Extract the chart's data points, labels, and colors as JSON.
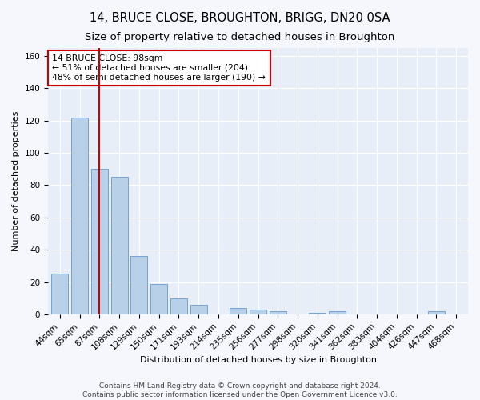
{
  "title": "14, BRUCE CLOSE, BROUGHTON, BRIGG, DN20 0SA",
  "subtitle": "Size of property relative to detached houses in Broughton",
  "xlabel": "Distribution of detached houses by size in Broughton",
  "ylabel": "Number of detached properties",
  "categories": [
    "44sqm",
    "65sqm",
    "87sqm",
    "108sqm",
    "129sqm",
    "150sqm",
    "171sqm",
    "193sqm",
    "214sqm",
    "235sqm",
    "256sqm",
    "277sqm",
    "298sqm",
    "320sqm",
    "341sqm",
    "362sqm",
    "383sqm",
    "404sqm",
    "426sqm",
    "447sqm",
    "468sqm"
  ],
  "values": [
    25,
    122,
    90,
    85,
    36,
    19,
    10,
    6,
    0,
    4,
    3,
    2,
    0,
    1,
    2,
    0,
    0,
    0,
    0,
    2,
    0
  ],
  "bar_color": "#b8d0e8",
  "bar_edge_color": "#6699cc",
  "vline_x": 2.0,
  "vline_color": "#cc0000",
  "annotation_text": "14 BRUCE CLOSE: 98sqm\n← 51% of detached houses are smaller (204)\n48% of semi-detached houses are larger (190) →",
  "annotation_box_color": "#cc0000",
  "ylim": [
    0,
    165
  ],
  "yticks": [
    0,
    20,
    40,
    60,
    80,
    100,
    120,
    140,
    160
  ],
  "footer_line1": "Contains HM Land Registry data © Crown copyright and database right 2024.",
  "footer_line2": "Contains public sector information licensed under the Open Government Licence v3.0.",
  "bg_color": "#e8eef8",
  "plot_bg_color": "#e8eef8",
  "fig_bg_color": "#f5f7fc",
  "grid_color": "#ffffff",
  "title_fontsize": 10.5,
  "subtitle_fontsize": 9.5,
  "axis_label_fontsize": 8,
  "tick_fontsize": 7.5,
  "footer_fontsize": 6.5,
  "annotation_fontsize": 7.8
}
